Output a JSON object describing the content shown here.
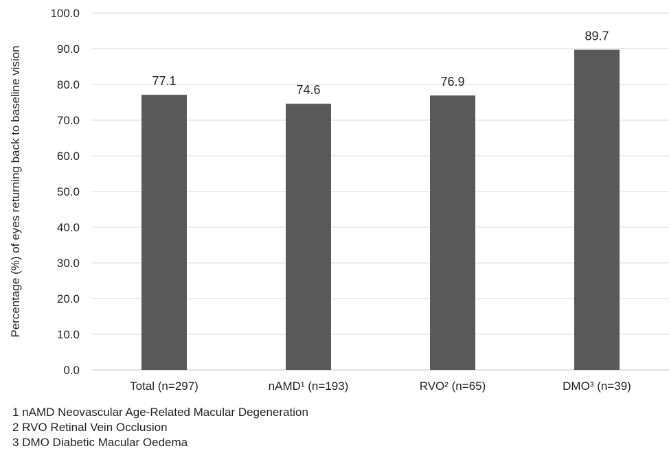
{
  "chart_data": {
    "type": "bar",
    "categories": [
      "Total (n=297)",
      "nAMD¹ (n=193)",
      "RVO² (n=65)",
      "DMO³ (n=39)"
    ],
    "values": [
      77.1,
      74.6,
      76.9,
      89.7
    ],
    "data_labels": [
      "77.1",
      "74.6",
      "76.9",
      "89.7"
    ],
    "title": "",
    "xlabel": "",
    "ylabel": "Percentage (%) of eyes returning back to baseline vision",
    "ylim": [
      0,
      100
    ],
    "yticks": [
      "0.0",
      "10.0",
      "20.0",
      "30.0",
      "40.0",
      "50.0",
      "60.0",
      "70.0",
      "80.0",
      "90.0",
      "100.0"
    ],
    "grid": true,
    "legend": "none",
    "bar_color": "#595959",
    "grid_color": "#d9d9d9"
  },
  "footnotes": [
    "1 nAMD Neovascular Age-Related Macular Degeneration",
    "2 RVO Retinal Vein Occlusion",
    "3 DMO Diabetic Macular Oedema"
  ]
}
